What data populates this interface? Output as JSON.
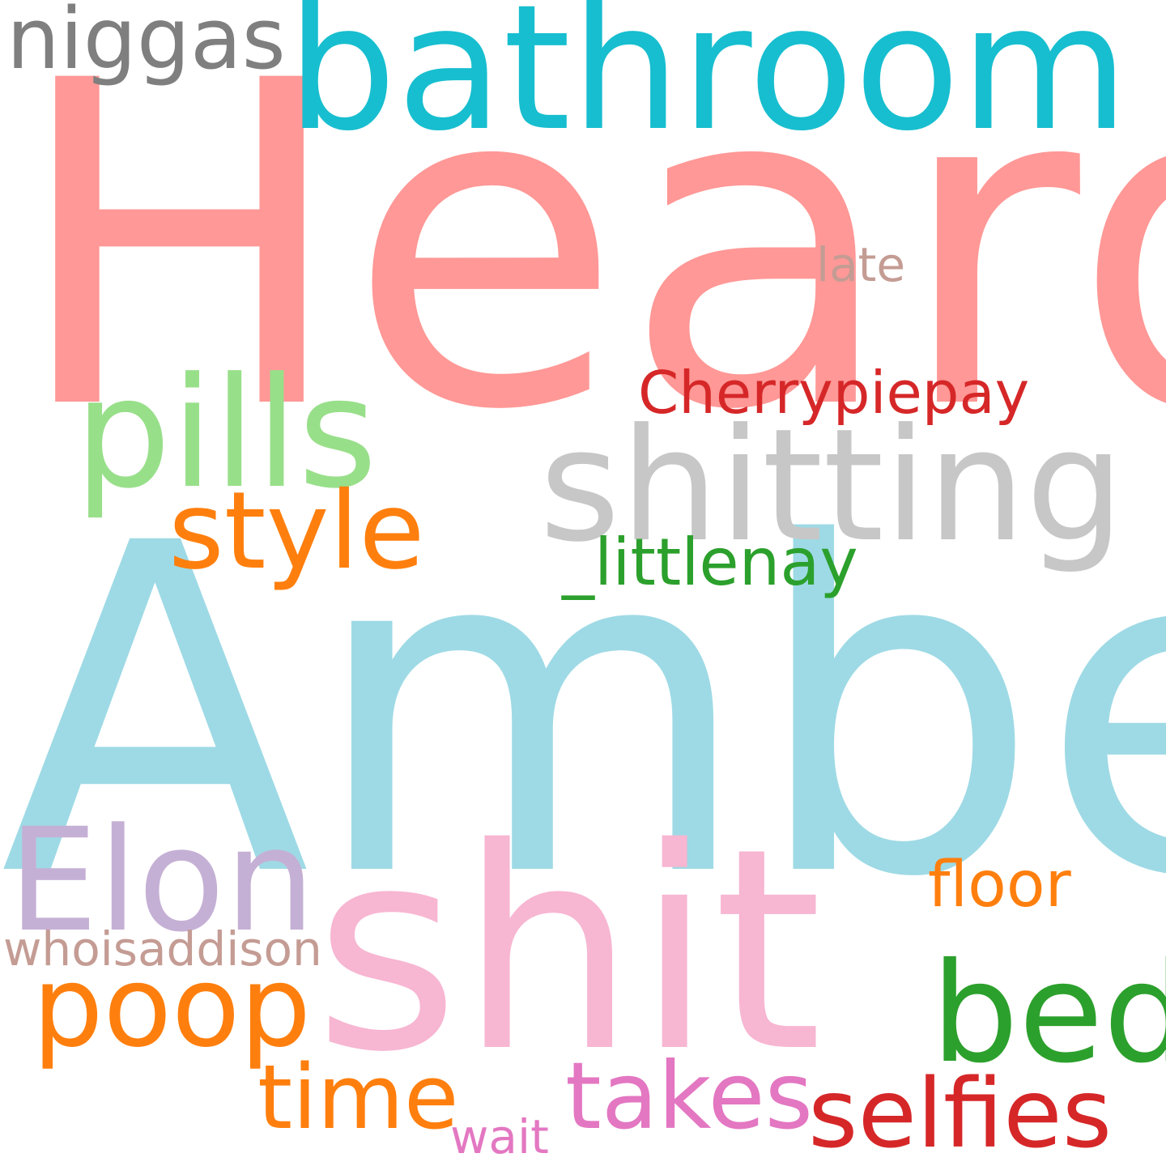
{
  "background_color": "#ffffff",
  "words": {
    "heard": {
      "text": "Heard",
      "color": "#ff9896"
    },
    "amber": {
      "text": "Amber",
      "color": "#9edae5"
    },
    "shit": {
      "text": "shit",
      "color": "#f7b6d2"
    },
    "bathroom": {
      "text": "bathroom",
      "color": "#17becf"
    },
    "shitting": {
      "text": "shitting",
      "color": "#c7c7c7"
    },
    "pills": {
      "text": "pills",
      "color": "#98df8a"
    },
    "elon": {
      "text": "Elon",
      "color": "#c5b0d5"
    },
    "bed": {
      "text": "bed",
      "color": "#2ca02c"
    },
    "poop": {
      "text": "poop",
      "color": "#ff7f0e"
    },
    "style": {
      "text": "style",
      "color": "#ff7f0e"
    },
    "selfies": {
      "text": "selfies",
      "color": "#d62728"
    },
    "takes": {
      "text": "takes",
      "color": "#e377c2"
    },
    "niggas": {
      "text": "niggas",
      "color": "#7f7f7f"
    },
    "time": {
      "text": "time",
      "color": "#ff7f0e"
    },
    "littlenay": {
      "text": "_littlenay",
      "color": "#2ca02c"
    },
    "floor": {
      "text": "floor",
      "color": "#ff7f0e"
    },
    "cherrypiepay": {
      "text": "Cherrypiepay",
      "color": "#d62728"
    },
    "whoisaddison": {
      "text": "whoisaddison",
      "color": "#c49c94"
    },
    "late": {
      "text": "late",
      "color": "#c49c94"
    },
    "wait": {
      "text": "wait",
      "color": "#e377c2"
    }
  }
}
